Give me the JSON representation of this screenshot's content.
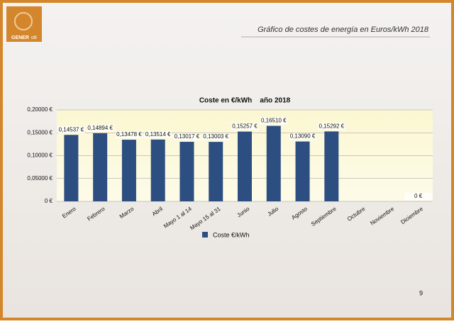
{
  "header": {
    "logo": "GENER",
    "logo_suffix": "o8",
    "title": "Gráfico de costes de energía en Euros/kWh 2018",
    "page": "9"
  },
  "chart_data": {
    "type": "bar",
    "title": "Coste en €/kWh    año 2018",
    "categories": [
      "Enero",
      "Febrero",
      "Marzo",
      "Abril",
      "Mayo 1 al 14",
      "Mayo 15 al 31",
      "Junio",
      "Julio",
      "Agosto",
      "Septiembre",
      "Octubre",
      "Noviembre",
      "Diciembre"
    ],
    "series": [
      {
        "name": "Coste €/kWh",
        "color": "#2d4e80",
        "values": [
          0.14537,
          0.14894,
          0.13478,
          0.13514,
          0.13017,
          0.13003,
          0.15257,
          0.1651,
          0.1309,
          0.15292,
          null,
          null,
          0
        ],
        "value_labels": [
          "0,14537 €",
          "0,14894 €",
          "0,13478 €",
          "0,13514 €",
          "0,13017 €",
          "0,13003 €",
          "0,15257 €",
          "0,16510 €",
          "0,13090 €",
          "0,15292 €",
          null,
          null,
          "0 €"
        ]
      }
    ],
    "ylim": [
      0,
      0.2
    ],
    "yticks": [
      {
        "value": 0,
        "label": "0 €"
      },
      {
        "value": 0.05,
        "label": "0,05000 €"
      },
      {
        "value": 0.1,
        "label": "0,10000 €"
      },
      {
        "value": 0.15,
        "label": "0,15000 €"
      },
      {
        "value": 0.2,
        "label": "0,20000 €"
      }
    ],
    "grid": true,
    "legend": "bottom"
  }
}
